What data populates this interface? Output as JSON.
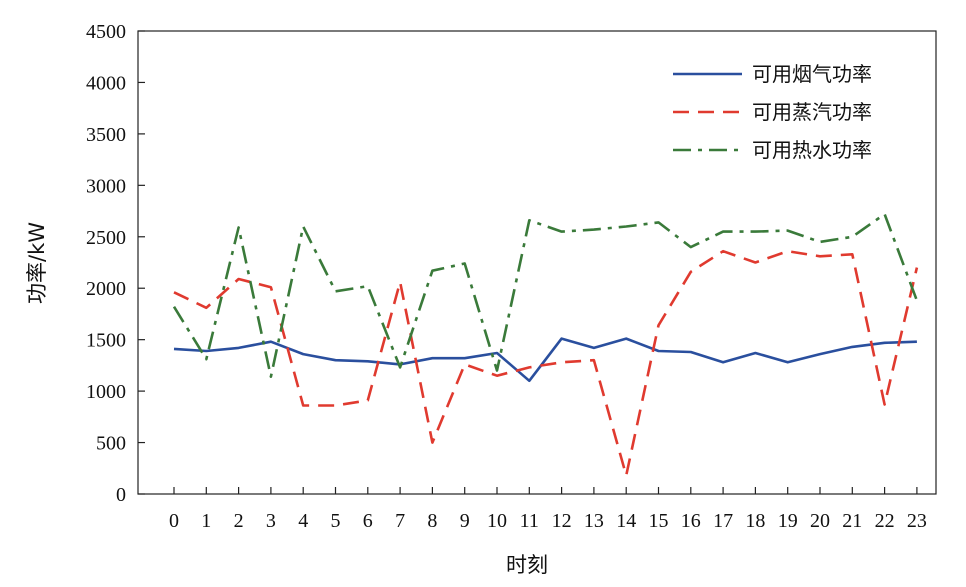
{
  "chart_data": {
    "type": "line",
    "xlabel": "时刻",
    "ylabel": "功率/kW",
    "x": [
      0,
      1,
      2,
      3,
      4,
      5,
      6,
      7,
      8,
      9,
      10,
      11,
      12,
      13,
      14,
      15,
      16,
      17,
      18,
      19,
      20,
      21,
      22,
      23
    ],
    "ylim": [
      0,
      4500
    ],
    "yticks": [
      0,
      500,
      1000,
      1500,
      2000,
      2500,
      3000,
      3500,
      4000,
      4500
    ],
    "grid": false,
    "legend_position": "top-right",
    "series": [
      {
        "name": "可用烟气功率",
        "color": "#2a4f9e",
        "dash": "solid",
        "values": [
          1410,
          1390,
          1420,
          1480,
          1360,
          1300,
          1290,
          1260,
          1320,
          1320,
          1370,
          1100,
          1510,
          1420,
          1510,
          1390,
          1380,
          1280,
          1370,
          1280,
          1360,
          1430,
          1470,
          1480
        ]
      },
      {
        "name": "可用蒸汽功率",
        "color": "#e03a2f",
        "dash": "dash",
        "values": [
          1960,
          1810,
          2090,
          2010,
          860,
          860,
          910,
          2060,
          500,
          1260,
          1150,
          1230,
          1280,
          1300,
          180,
          1640,
          2160,
          2360,
          2250,
          2360,
          2310,
          2330,
          870,
          2200
        ]
      },
      {
        "name": "可用热水功率",
        "color": "#3a7a3a",
        "dash": "dashdot",
        "values": [
          1820,
          1310,
          2590,
          1140,
          2600,
          1970,
          2020,
          1230,
          2170,
          2240,
          1200,
          2660,
          2550,
          2570,
          2600,
          2640,
          2400,
          2550,
          2550,
          2560,
          2450,
          2500,
          2720,
          1880
        ]
      }
    ]
  }
}
